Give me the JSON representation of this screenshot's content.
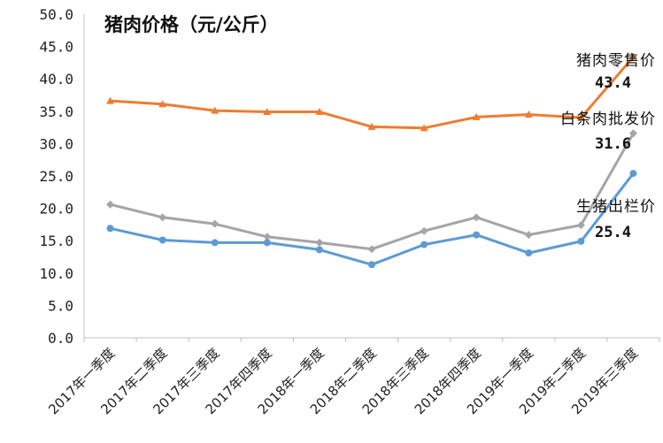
{
  "chart_data": {
    "type": "line",
    "title": "猪肉价格（元/公斤）",
    "xlabel": "",
    "ylabel": "",
    "ylim": [
      0,
      50
    ],
    "ytick_step": 5,
    "ytick_labels": [
      "0.0",
      "5.0",
      "10.0",
      "15.0",
      "20.0",
      "25.0",
      "30.0",
      "35.0",
      "40.0",
      "45.0",
      "50.0"
    ],
    "grid": false,
    "categories": [
      "2017年一季度",
      "2017年二季度",
      "2017年三季度",
      "2017年四季度",
      "2018年一季度",
      "2018年二季度",
      "2018年三季度",
      "2018年四季度",
      "2019年一季度",
      "2019年二季度",
      "2019年三季度"
    ],
    "series": [
      {
        "name": "猪肉零售价",
        "color": "#ED7D31",
        "marker": "triangle",
        "values": [
          36.6,
          36.1,
          35.1,
          34.9,
          34.9,
          32.6,
          32.4,
          34.1,
          34.5,
          34.0,
          43.4
        ],
        "end_label": "43.4"
      },
      {
        "name": "白条肉批发价",
        "color": "#A5A5A5",
        "marker": "diamond",
        "values": [
          20.6,
          18.6,
          17.6,
          15.6,
          14.7,
          13.7,
          16.5,
          18.6,
          15.9,
          17.4,
          31.6
        ],
        "end_label": "31.6"
      },
      {
        "name": "生猪出栏价",
        "color": "#5B9BD5",
        "marker": "circle",
        "values": [
          16.9,
          15.1,
          14.7,
          14.7,
          13.6,
          11.3,
          14.4,
          15.9,
          13.1,
          14.9,
          25.4
        ],
        "end_label": "25.4"
      }
    ]
  }
}
